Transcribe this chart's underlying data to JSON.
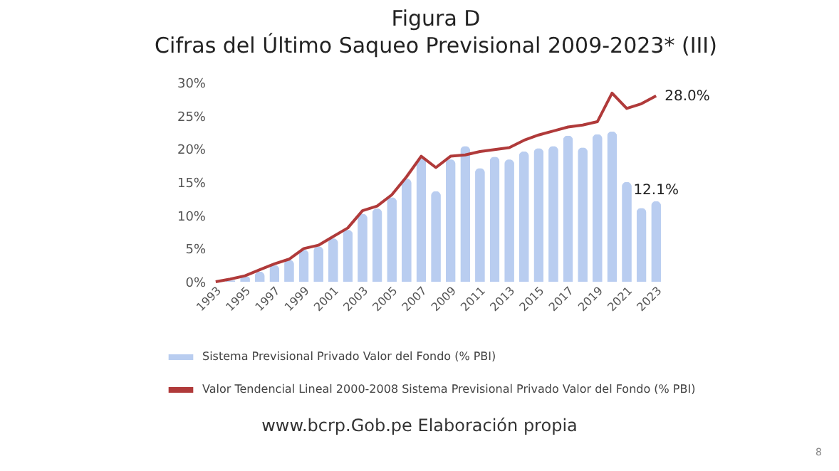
{
  "chart_data": {
    "type": "bar",
    "title": "Figura D",
    "subtitle": "Cifras del Último Saqueo Previsional 2009-2023* (III)",
    "categories": [
      "1993",
      null,
      "1995",
      null,
      "1997",
      null,
      "1999",
      null,
      "2001",
      null,
      "2003",
      null,
      "2005",
      null,
      "2007",
      null,
      "2009",
      null,
      "2011",
      null,
      "2013",
      null,
      "2015",
      null,
      "2017",
      null,
      "2019",
      null,
      "2021",
      null,
      "2023"
    ],
    "series": [
      {
        "name": "Sistema Previsional Privado Valor del Fondo (% PBI)",
        "type": "bar",
        "color": "#b9cdf0",
        "values": [
          0,
          0.2,
          0.8,
          1.5,
          2.5,
          3.3,
          4.8,
          5.3,
          6.5,
          7.8,
          10.2,
          11.0,
          12.7,
          15.5,
          18.5,
          13.6,
          18.4,
          20.4,
          17.1,
          18.8,
          18.4,
          19.6,
          20.1,
          20.4,
          22.0,
          20.2,
          22.2,
          22.6,
          15.0,
          11.1,
          12.1
        ],
        "value_labels": [
          null,
          null,
          null,
          null,
          null,
          null,
          null,
          null,
          null,
          null,
          null,
          null,
          null,
          null,
          null,
          null,
          null,
          null,
          null,
          null,
          null,
          null,
          null,
          null,
          null,
          null,
          null,
          null,
          null,
          null,
          "12.1%"
        ]
      },
      {
        "name": "Valor Tendencial Lineal 2000-2008 Sistema Previsional Privado Valor del Fondo (% PBI)",
        "type": "line",
        "color": "#b03a3a",
        "values": [
          0,
          0.4,
          0.9,
          1.8,
          2.7,
          3.4,
          5.0,
          5.5,
          6.8,
          8.1,
          10.7,
          11.4,
          13.1,
          15.8,
          18.9,
          17.2,
          18.9,
          19.1,
          19.6,
          19.9,
          20.2,
          21.3,
          22.1,
          22.7,
          23.3,
          23.6,
          24.1,
          28.4,
          26.1,
          26.8,
          28.0
        ],
        "value_labels": [
          null,
          null,
          null,
          null,
          null,
          null,
          null,
          null,
          null,
          null,
          null,
          null,
          null,
          null,
          null,
          null,
          null,
          null,
          null,
          null,
          null,
          null,
          null,
          null,
          null,
          null,
          null,
          null,
          null,
          null,
          "28.0%"
        ]
      }
    ],
    "ylim": [
      0,
      30
    ],
    "yticks": [
      {
        "value": 0,
        "label": "0%"
      },
      {
        "value": 5,
        "label": "5%"
      },
      {
        "value": 10,
        "label": "10%"
      },
      {
        "value": 15,
        "label": "15%"
      },
      {
        "value": 20,
        "label": "20%"
      },
      {
        "value": 25,
        "label": "25%"
      },
      {
        "value": 30,
        "label": "30%"
      }
    ],
    "grid": false,
    "legend": "bottom left",
    "marker": "none",
    "line_style": "solid",
    "annotations": [
      "www.bcrp.Gob.pe Elaboración propia",
      "8"
    ]
  }
}
